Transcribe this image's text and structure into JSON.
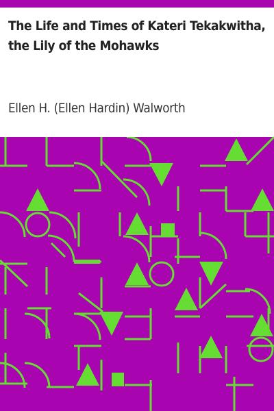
{
  "book": {
    "title": "The Life and Times of Kateri Tekakwitha, the Lily of the Mohawks",
    "author": "Ellen H. (Ellen Hardin) Walworth"
  },
  "colors": {
    "background": "#a804b0",
    "pattern": "#66dd33",
    "title_text": "#222222",
    "author_text": "#333333"
  },
  "icons": {
    "cover_pattern": "geometric-pattern-icon"
  }
}
